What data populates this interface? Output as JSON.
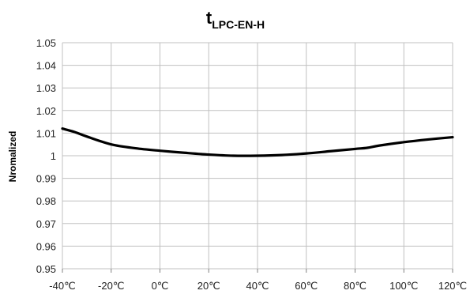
{
  "chart_data": {
    "type": "line",
    "title_main": "t",
    "title_sub": "LPC-EN-H",
    "xlabel": "",
    "ylabel": "Nromalized",
    "x": [
      -40,
      -35,
      -30,
      -20,
      -10,
      0,
      10,
      20,
      30,
      40,
      50,
      60,
      70,
      80,
      85,
      90,
      100,
      110,
      120
    ],
    "series": [
      {
        "values": [
          1.012,
          1.0105,
          1.0085,
          1.005,
          1.0033,
          1.0022,
          1.0013,
          1.0005,
          1.0,
          1.0,
          1.0003,
          1.001,
          1.002,
          1.003,
          1.0035,
          1.0045,
          1.006,
          1.0072,
          1.0082
        ]
      }
    ],
    "xlim": [
      -40,
      120
    ],
    "ylim": [
      0.95,
      1.05
    ],
    "x_ticks": [
      -40,
      -20,
      0,
      20,
      40,
      60,
      80,
      100,
      120
    ],
    "x_tick_labels": [
      "-40℃",
      "-20℃",
      "0℃",
      "20℃",
      "40℃",
      "60℃",
      "80℃",
      "100℃",
      "120℃"
    ],
    "y_ticks": [
      0.95,
      0.96,
      0.97,
      0.98,
      0.99,
      1.0,
      1.01,
      1.02,
      1.03,
      1.04,
      1.05
    ],
    "y_tick_labels": [
      "0.95",
      "0.96",
      "0.97",
      "0.98",
      "0.99",
      "1",
      "1.01",
      "1.02",
      "1.03",
      "1.04",
      "1.05"
    ],
    "grid": true,
    "line_color": "#000000",
    "grid_color": "#c0c0c0"
  }
}
